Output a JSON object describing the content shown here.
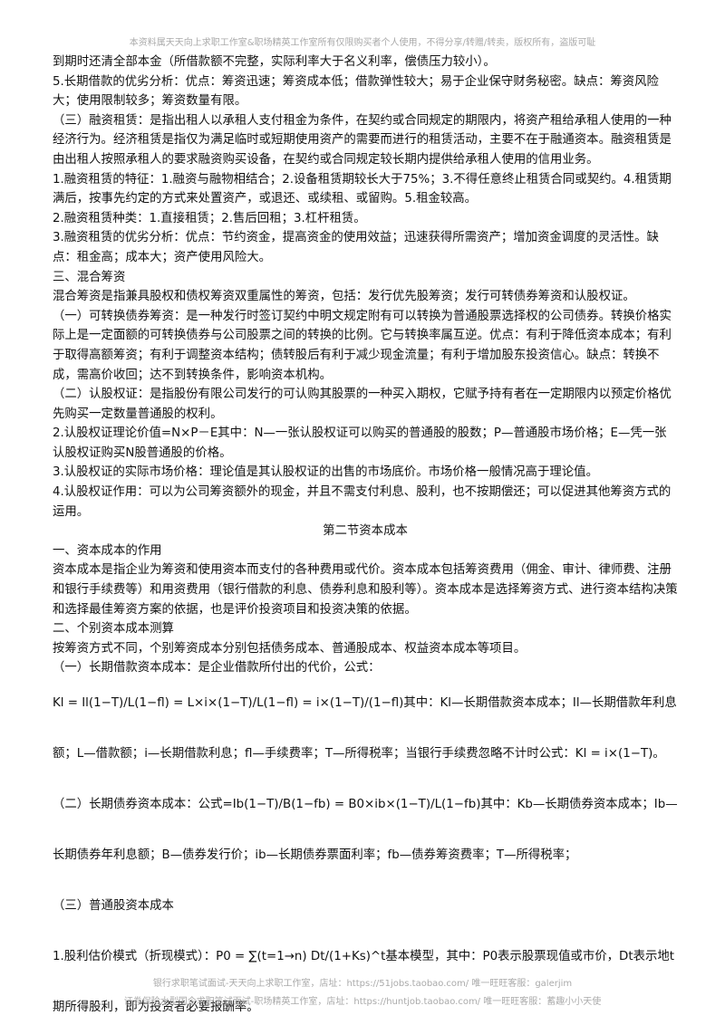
{
  "header": {
    "notice": "本资料属天天向上求职工作室&职场精英工作室所有仅限购买者个人使用，不得分享/转赠/转卖，版权所有，盗版可耻"
  },
  "paragraphs": [
    "到期时还清全部本金（所借款额不完整，实际利率大于名义利率，偿债压力较小）。",
    "5.长期借款的优劣分析：优点：筹资迅速；筹资成本低；借款弹性较大；易于企业保守财务秘密。缺点：筹资风险大；使用限制较多；筹资数量有限。",
    "（三）融资租赁：是指出租人以承租人支付租金为条件，在契约或合同规定的期限内，将资产租给承租人使用的一种经济行为。经济租赁是指仅为满足临时或短期使用资产的需要而进行的租赁活动，主要不在于融通资本。融资租赁是由出租人按照承租人的要求融资购买设备，在契约或合同规定较长期内提供给承租人使用的信用业务。",
    "1.融资租赁的特征：1.融资与融物相结合；2.设备租赁期较长大于75%；3.不得任意终止租赁合同或契约。4.租赁期满后，按事先约定的方式来处置资产，或退还、或续租、或留购。5.租金较高。",
    "2.融资租赁种类：1.直接租赁；2.售后回租；3.杠杆租赁。",
    "3.融资租赁的优劣分析：优点：节约资金，提高资金的使用效益；迅速获得所需资产；增加资金调度的灵活性。缺点：租金高；成本大；资产使用风险大。",
    "三、混合筹资",
    "混合筹资是指兼具股权和债权筹资双重属性的筹资，包括：发行优先股筹资；发行可转债券筹资和认股权证。",
    "（一）可转换债券筹资：是一种发行时签订契约中明文规定附有可以转换为普通股票选择权的公司债券。转换价格实际上是一定面额的可转换债券与公司股票之间的转换的比例。它与转换率属互逆。优点：有利于降低资本成本；有利于取得高额筹资；有利于调整资本结构；债转股后有利于减少现金流量；有利于增加股东投资信心。缺点：转换不成，需高价收回；达不到转换条件，影响资本机构。",
    "（二）认股权证：是指股份有限公司发行的可认购其股票的一种买入期权，它赋予持有者在一定期限内以预定价格优先购买一定数量普通股的权利。",
    "2.认股权证理论价值=N×P－E其中：N—一张认股权证可以购买的普通股的股数；P—普通股市场价格；E—凭一张认股权证购买N股普通股的价格。",
    "3.认股权证的实际市场价格：理论值是其认股权证的出售的市场底价。市场价格一般情况高于理论值。",
    "4.认股权证作用：可以为公司筹资额外的现金，并且不需支付利息、股利，也不按期偿还；可以促进其他筹资方式的运用。"
  ],
  "section": {
    "title": "第二节资本成本",
    "paragraphs": [
      "一、资本成本的作用",
      "资本成本是指企业为筹资和使用资本而支付的各种费用或代价。资本成本包括筹资费用（佣金、审计、律师费、注册和银行手续费等）和用资费用（银行借款的利息、债券利息和股利等）。资本成本是选择筹资方式、进行资本结构决策和选择最佳筹资方案的依据，也是评价投资项目和投资决策的依据。",
      "二、个别资本成本测算",
      "按筹资方式不同，个别筹资成本分别包括债务成本、普通股成本、权益资本成本等项目。",
      "（一）长期借款资本成本：是企业借款所付出的代价，公式："
    ],
    "formulas": [
      "Kl = Il(1−T)/L(1−fl) = L×i×(1−T)/L(1−fl) = i×(1−T)/(1−fl)其中：Kl—长期借款资本成本；Il—长期借款年利息额；L—借款额；i—长期借款利息；fl—手续费率；T—所得税率；当银行手续费忽略不计时公式：Kl = i×(1−T)。",
      "（二）长期债券资本成本：公式=Ib(1−T)/B(1−fb) = B0×ib×(1−T)/L(1−fb)其中：Kb—长期债券资本成本；Ib—长期债券年利息额；B—债券发行价；ib—长期债券票面利率；fb—债券筹资费率；T—所得税率；",
      "（三）普通股资本成本",
      "1.股利估价模式（折现模式）：P0 = ∑(t=1→n) Dt/(1+Ks)^t基本模型，其中：P0表示股票现值或市价，Dt表示地t期所得股利，即为投资者必要报酬率。"
    ]
  },
  "footer": {
    "lines": [
      "银行求职笔试面试-天天向上求职工作室，店址：https://51jobs.taobao.com/ 唯一旺旺客服：galerjim",
      "证券保险水型国企求职笔试面试-职场精英工作室，店址：https://huntjob.taobao.com/ 唯一旺旺客服：蓄趣小小天使"
    ]
  }
}
